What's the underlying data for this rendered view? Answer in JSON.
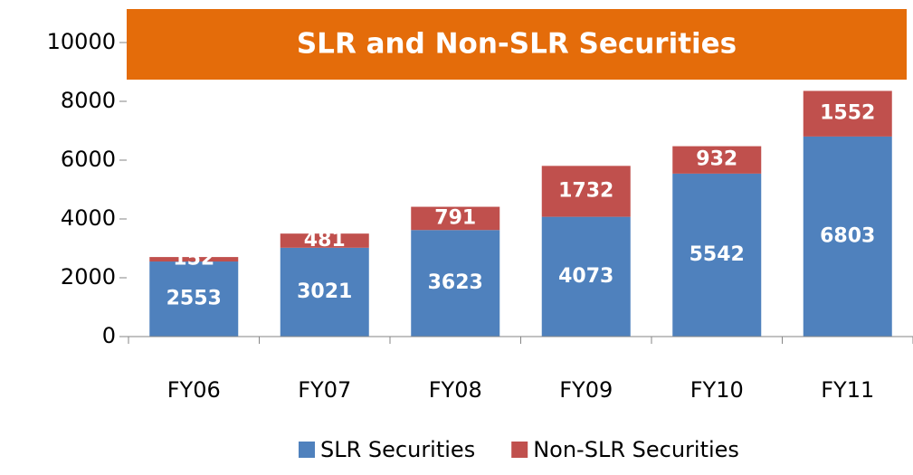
{
  "chart_data": {
    "type": "bar",
    "stacked": true,
    "title": "SLR and Non-SLR Securities",
    "categories": [
      "FY06",
      "FY07",
      "FY08",
      "FY09",
      "FY10",
      "FY11"
    ],
    "series": [
      {
        "name": "SLR Securities",
        "color": "#4f81bd",
        "values": [
          2553,
          3021,
          3623,
          4073,
          5542,
          6803
        ]
      },
      {
        "name": "Non-SLR Securities",
        "color": "#c0504d",
        "values": [
          152,
          481,
          791,
          1732,
          932,
          1552
        ]
      }
    ],
    "ylim": [
      0,
      10000
    ],
    "yticks": [
      0,
      2000,
      4000,
      6000,
      8000,
      10000
    ],
    "grid": false,
    "legend": "bottom"
  }
}
